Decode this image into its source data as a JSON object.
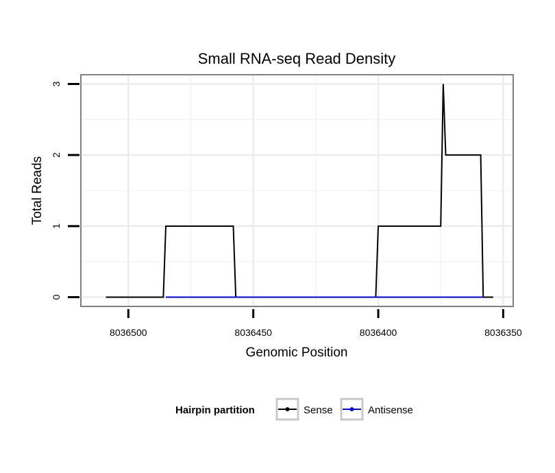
{
  "chart_data": {
    "type": "line",
    "title": "Small RNA-seq Read Density",
    "xlabel": "Genomic Position",
    "ylabel": "Total Reads",
    "x_reversed": true,
    "xlim": [
      8036519,
      8036346
    ],
    "ylim": [
      -0.13,
      3.13
    ],
    "x_ticks": [
      {
        "value": 8036500,
        "label": "8036500"
      },
      {
        "value": 8036450,
        "label": "8036450"
      },
      {
        "value": 8036400,
        "label": "8036400"
      },
      {
        "value": 8036350,
        "label": "8036350"
      }
    ],
    "y_ticks": [
      {
        "value": 0,
        "label": "0"
      },
      {
        "value": 1,
        "label": "1"
      },
      {
        "value": 2,
        "label": "2"
      },
      {
        "value": 3,
        "label": "3"
      }
    ],
    "grid": true,
    "legend": {
      "title": "Hairpin partition",
      "position": "bottom",
      "entries": [
        {
          "label": "Sense",
          "color": "#000000"
        },
        {
          "label": "Antisense",
          "color": "#0000ff"
        }
      ]
    },
    "series": [
      {
        "name": "Sense",
        "color": "#000000",
        "points": [
          [
            8036509,
            0
          ],
          [
            8036486,
            0
          ],
          [
            8036485,
            1
          ],
          [
            8036458,
            1
          ],
          [
            8036457,
            0
          ],
          [
            8036401,
            0
          ],
          [
            8036400,
            1
          ],
          [
            8036375,
            1
          ],
          [
            8036374,
            3
          ],
          [
            8036373,
            2
          ],
          [
            8036359,
            2
          ],
          [
            8036358,
            0
          ],
          [
            8036354,
            0
          ]
        ]
      },
      {
        "name": "Antisense",
        "color": "#0000ff",
        "points": [
          [
            8036485,
            0
          ],
          [
            8036458,
            0
          ],
          [
            8036457,
            0
          ],
          [
            8036400,
            0
          ],
          [
            8036358,
            0
          ]
        ]
      }
    ]
  }
}
